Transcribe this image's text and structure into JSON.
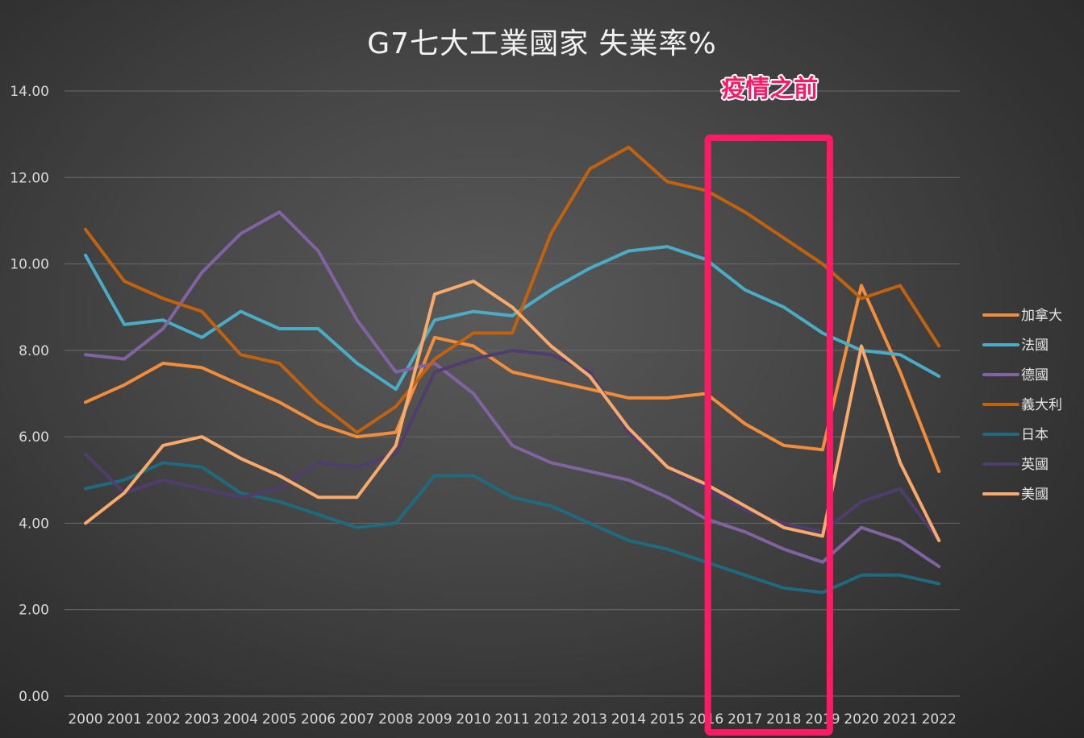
{
  "chart_data": {
    "type": "line",
    "title": "G7七大工業國家 失業率%",
    "xlabel": "",
    "ylabel": "",
    "ylim": [
      0,
      14
    ],
    "y_ticks": [
      "0.00",
      "2.00",
      "4.00",
      "6.00",
      "8.00",
      "10.00",
      "12.00",
      "14.00"
    ],
    "grid": true,
    "legend_position": "right",
    "x": [
      "2000",
      "2001",
      "2002",
      "2003",
      "2004",
      "2005",
      "2006",
      "2007",
      "2008",
      "2009",
      "2010",
      "2011",
      "2012",
      "2013",
      "2014",
      "2015",
      "2016",
      "2017",
      "2018",
      "2019",
      "2020",
      "2021",
      "2022"
    ],
    "series": [
      {
        "name": "加拿大",
        "color": "#f28e3b",
        "values": [
          6.8,
          7.2,
          7.7,
          7.6,
          7.2,
          6.8,
          6.3,
          6.0,
          6.1,
          8.3,
          8.1,
          7.5,
          7.3,
          7.1,
          6.9,
          6.9,
          7.0,
          6.3,
          5.8,
          5.7,
          9.5,
          7.5,
          5.2
        ]
      },
      {
        "name": "法國",
        "color": "#4bacc6",
        "values": [
          10.2,
          8.6,
          8.7,
          8.3,
          8.9,
          8.5,
          8.5,
          7.7,
          7.1,
          8.7,
          8.9,
          8.8,
          9.4,
          9.9,
          10.3,
          10.4,
          10.1,
          9.4,
          9.0,
          8.4,
          8.0,
          7.9,
          7.4
        ]
      },
      {
        "name": "德國",
        "color": "#8064a2",
        "values": [
          7.9,
          7.8,
          8.5,
          9.8,
          10.7,
          11.2,
          10.3,
          8.7,
          7.5,
          7.7,
          7.0,
          5.8,
          5.4,
          5.2,
          5.0,
          4.6,
          4.1,
          3.8,
          3.4,
          3.1,
          3.9,
          3.6,
          3.0
        ]
      },
      {
        "name": "義大利",
        "color": "#c0620e",
        "values": [
          10.8,
          9.6,
          9.2,
          8.9,
          7.9,
          7.7,
          6.8,
          6.1,
          6.7,
          7.8,
          8.4,
          8.4,
          10.7,
          12.2,
          12.7,
          11.9,
          11.7,
          11.2,
          10.6,
          10.0,
          9.2,
          9.5,
          8.1
        ]
      },
      {
        "name": "日本",
        "color": "#1f6b7d",
        "values": [
          4.8,
          5.0,
          5.4,
          5.3,
          4.7,
          4.5,
          4.2,
          3.9,
          4.0,
          5.1,
          5.1,
          4.6,
          4.4,
          4.0,
          3.6,
          3.4,
          3.1,
          2.8,
          2.5,
          2.4,
          2.8,
          2.8,
          2.6
        ]
      },
      {
        "name": "英國",
        "color": "#4f3d6e",
        "values": [
          5.6,
          4.7,
          5.0,
          4.8,
          4.6,
          4.8,
          5.4,
          5.3,
          5.6,
          7.5,
          7.8,
          8.0,
          7.9,
          7.5,
          6.1,
          5.3,
          4.8,
          4.3,
          4.0,
          3.8,
          4.5,
          4.8,
          3.6
        ]
      },
      {
        "name": "美國",
        "color": "#fbaa6a",
        "values": [
          4.0,
          4.7,
          5.8,
          6.0,
          5.5,
          5.1,
          4.6,
          4.6,
          5.8,
          9.3,
          9.6,
          9.0,
          8.1,
          7.4,
          6.2,
          5.3,
          4.9,
          4.4,
          3.9,
          3.7,
          8.1,
          5.4,
          3.6
        ]
      }
    ],
    "annotation": {
      "text": "疫情之前",
      "color": "#ff1a66",
      "x_range": [
        "2016",
        "2019"
      ]
    }
  }
}
